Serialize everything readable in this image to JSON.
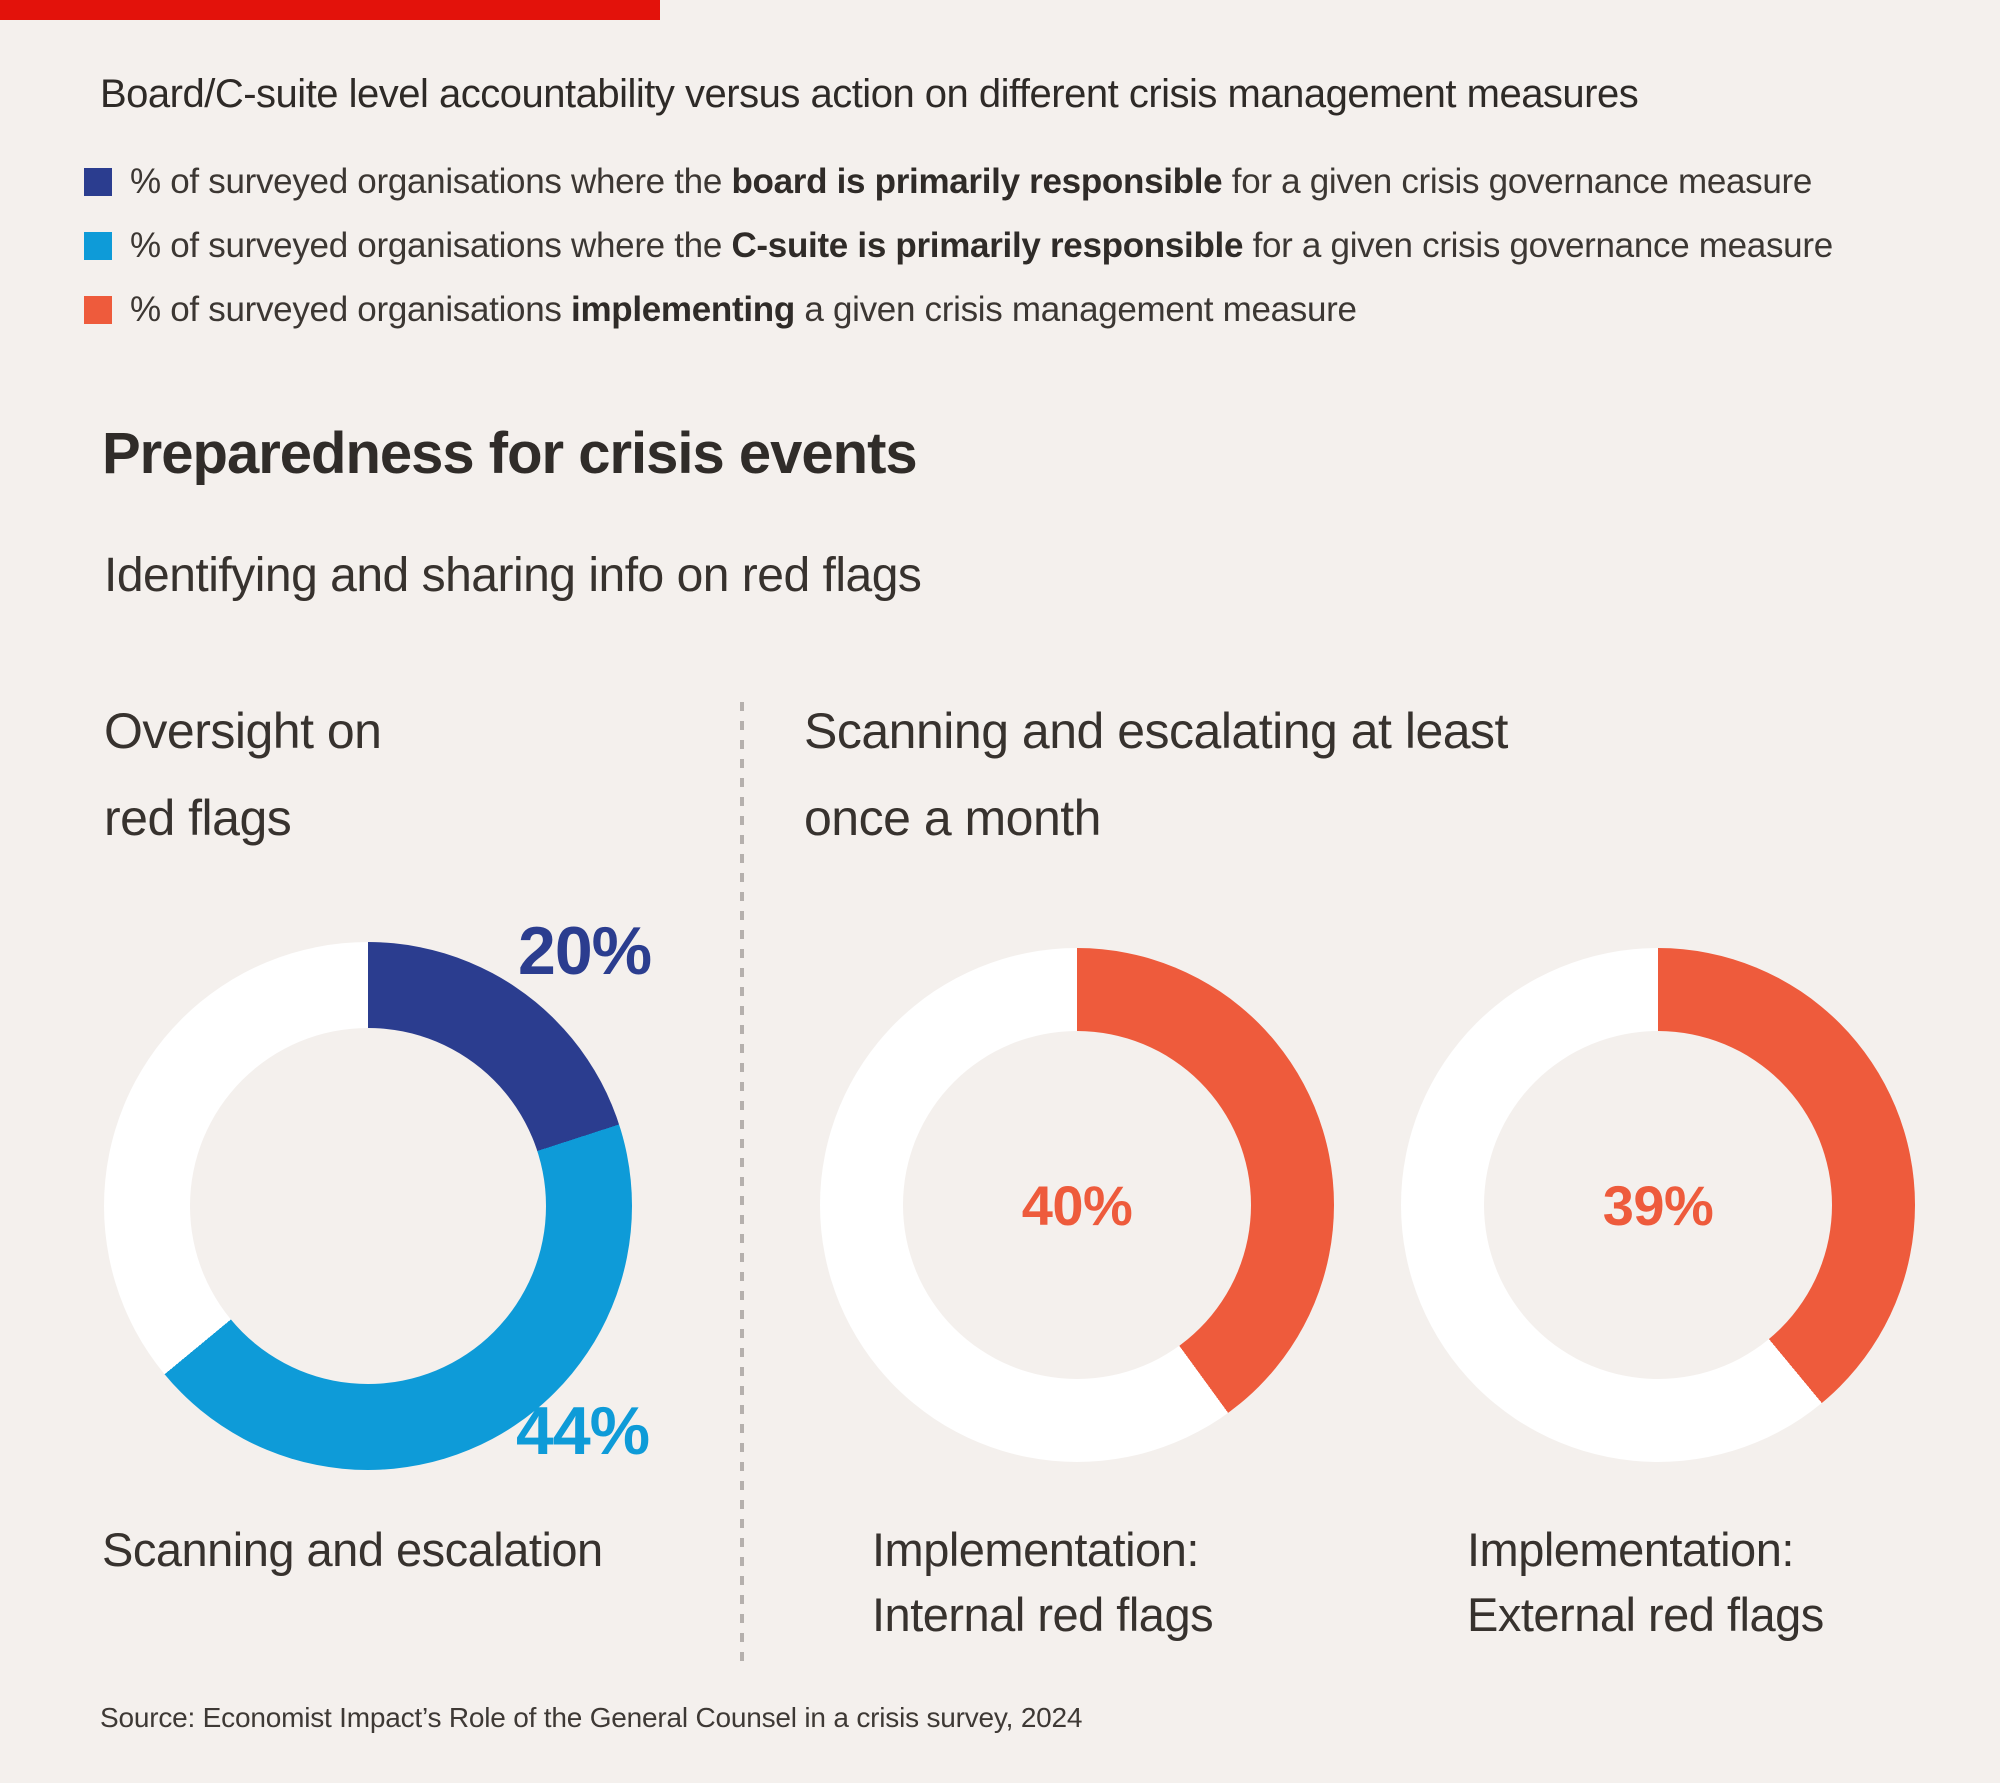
{
  "colors": {
    "background": "#f4f0ed",
    "top_bar": "#e3120b",
    "board_blue": "#2b3d8f",
    "csuite_blue": "#0e9bd8",
    "implement_orange": "#ee5b3c",
    "ring_white": "#ffffff",
    "divider_grey": "#b5b0ad"
  },
  "header": {
    "title": "Board/C-suite level accountability versus action on different crisis management measures"
  },
  "legend": {
    "items": [
      {
        "color": "#2b3d8f",
        "prefix": "% of surveyed organisations where the ",
        "bold": "board is primarily responsible",
        "suffix": " for a given crisis governance measure"
      },
      {
        "color": "#0e9bd8",
        "prefix": "% of surveyed organisations where the ",
        "bold": "C-suite is primarily responsible",
        "suffix": " for a given crisis governance measure"
      },
      {
        "color": "#ee5b3c",
        "prefix": "% of surveyed organisations ",
        "bold": "implementing",
        "suffix": " a given crisis management measure"
      }
    ]
  },
  "section": {
    "heading": "Preparedness for crisis events",
    "subheading": "Identifying and sharing info on red flags"
  },
  "panels": {
    "left": {
      "title_line1": "Oversight on",
      "title_line2": "red flags"
    },
    "right": {
      "title_line1": "Scanning and escalating at least",
      "title_line2": "once a month"
    }
  },
  "chart_data": [
    {
      "type": "pie",
      "variant": "donut",
      "title": "Oversight on red flags",
      "legend_position": "top",
      "segments": [
        {
          "label": "Board is primarily responsible",
          "value": 20,
          "display": "20%",
          "color": "#2b3d8f"
        },
        {
          "label": "C-suite is primarily responsible",
          "value": 44,
          "display": "44%",
          "color": "#0e9bd8"
        },
        {
          "label": "Remainder (no primary responsibility shown)",
          "value": 36,
          "color": "#ffffff"
        }
      ],
      "caption": "Scanning and escalation"
    },
    {
      "type": "pie",
      "variant": "donut",
      "title": "Scanning and escalating at least once a month",
      "segments": [
        {
          "label": "Implementing",
          "value": 40,
          "display": "40%",
          "color": "#ee5b3c"
        },
        {
          "label": "Not implementing",
          "value": 60,
          "color": "#ffffff"
        }
      ],
      "caption_line1": "Implementation:",
      "caption_line2": "Internal red flags"
    },
    {
      "type": "pie",
      "variant": "donut",
      "title": "Scanning and escalating at least once a month",
      "segments": [
        {
          "label": "Implementing",
          "value": 39,
          "display": "39%",
          "color": "#ee5b3c"
        },
        {
          "label": "Not implementing",
          "value": 61,
          "color": "#ffffff"
        }
      ],
      "caption_line1": "Implementation:",
      "caption_line2": "External red flags"
    }
  ],
  "source": "Source: Economist Impact’s Role of the General Counsel in a crisis survey, 2024"
}
